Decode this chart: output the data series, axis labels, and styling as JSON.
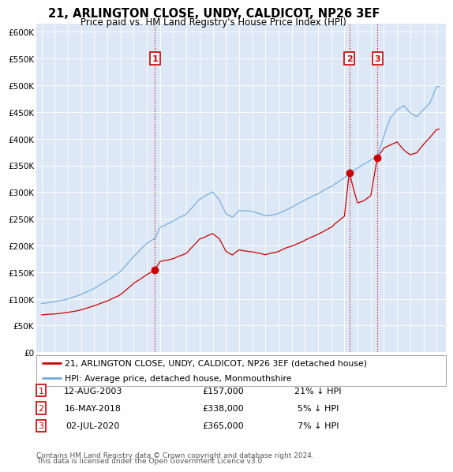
{
  "title": "21, ARLINGTON CLOSE, UNDY, CALDICOT, NP26 3EF",
  "subtitle": "Price paid vs. HM Land Registry's House Price Index (HPI)",
  "ylabel_ticks": [
    "£0",
    "£50K",
    "£100K",
    "£150K",
    "£200K",
    "£250K",
    "£300K",
    "£350K",
    "£400K",
    "£450K",
    "£500K",
    "£550K",
    "£600K"
  ],
  "ytick_values": [
    0,
    50000,
    100000,
    150000,
    200000,
    250000,
    300000,
    350000,
    400000,
    450000,
    500000,
    550000,
    600000
  ],
  "ylim": [
    0,
    615000
  ],
  "transactions": [
    {
      "num": 1,
      "date_str": "12-AUG-2003",
      "price": 157000,
      "pct": "21% ↓ HPI",
      "year": 2003.62
    },
    {
      "num": 2,
      "date_str": "16-MAY-2018",
      "price": 338000,
      "pct": "5% ↓ HPI",
      "year": 2018.37
    },
    {
      "num": 3,
      "date_str": "02-JUL-2020",
      "price": 365000,
      "pct": "7% ↓ HPI",
      "year": 2020.5
    }
  ],
  "legend_entries": [
    {
      "label": "21, ARLINGTON CLOSE, UNDY, CALDICOT, NP26 3EF (detached house)",
      "color": "#cc0000"
    },
    {
      "label": "HPI: Average price, detached house, Monmouthshire",
      "color": "#6fa8dc"
    }
  ],
  "footnote1": "Contains HM Land Registry data © Crown copyright and database right 2024.",
  "footnote2": "This data is licensed under the Open Government Licence v3.0.",
  "vline_color": "#cc0000",
  "background_color": "#ffffff",
  "plot_bg_color": "#dce8f5"
}
